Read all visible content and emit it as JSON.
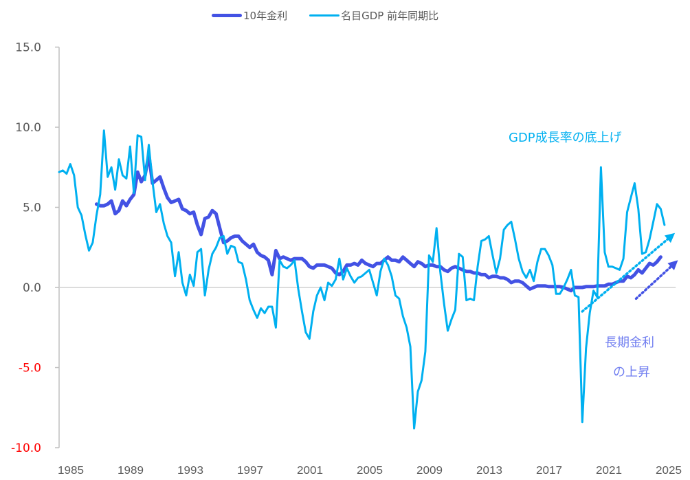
{
  "chart_data": {
    "type": "line",
    "title": "",
    "xlabel": "",
    "ylabel": "",
    "ylim": [
      -10,
      15
    ],
    "yticks": [
      15,
      10,
      5,
      0,
      -5,
      -10
    ],
    "ytick_labels": [
      "15.0",
      "10.0",
      "5.0",
      "0.0",
      "-5.0",
      "-10.0"
    ],
    "negative_tick_color": "#ff0000",
    "xlim": [
      1985,
      2026.25
    ],
    "xticks": [
      1985,
      1989,
      1993,
      1997,
      2001,
      2005,
      2009,
      2013,
      2017,
      2021,
      2025
    ],
    "xtick_labels": [
      "1985",
      "1989",
      "1993",
      "1997",
      "2001",
      "2005",
      "2009",
      "2013",
      "2017",
      "2021",
      "2025"
    ],
    "legend_position": "top-center",
    "series": [
      {
        "name": "10年金利",
        "color": "#4352e4",
        "start": 1987.5,
        "step": 0.25,
        "values": [
          5.2,
          5.1,
          5.1,
          5.2,
          5.4,
          4.6,
          4.8,
          5.4,
          5.1,
          5.5,
          5.8,
          7.2,
          6.6,
          7.0,
          8.3,
          6.5,
          6.7,
          6.9,
          6.2,
          5.6,
          5.3,
          5.4,
          5.5,
          4.9,
          4.8,
          4.6,
          4.7,
          3.9,
          3.3,
          4.3,
          4.4,
          4.8,
          4.6,
          3.7,
          2.8,
          2.9,
          3.1,
          3.2,
          3.2,
          2.9,
          2.7,
          2.5,
          2.7,
          2.2,
          2.0,
          1.9,
          1.7,
          0.8,
          2.3,
          1.8,
          1.9,
          1.8,
          1.7,
          1.8,
          1.8,
          1.8,
          1.6,
          1.3,
          1.2,
          1.4,
          1.4,
          1.4,
          1.3,
          1.2,
          0.9,
          0.8,
          1.0,
          1.4,
          1.4,
          1.5,
          1.4,
          1.7,
          1.5,
          1.4,
          1.3,
          1.5,
          1.5,
          1.7,
          1.9,
          1.7,
          1.7,
          1.6,
          1.9,
          1.7,
          1.5,
          1.3,
          1.6,
          1.5,
          1.3,
          1.4,
          1.4,
          1.3,
          1.3,
          1.1,
          1.0,
          1.2,
          1.3,
          1.2,
          1.1,
          1.0,
          1.0,
          0.9,
          0.9,
          0.8,
          0.8,
          0.6,
          0.7,
          0.7,
          0.6,
          0.6,
          0.5,
          0.3,
          0.4,
          0.4,
          0.3,
          0.1,
          -0.1,
          0.0,
          0.1,
          0.1,
          0.1,
          0.05,
          0.05,
          0.05,
          0.05,
          0.0,
          -0.1,
          -0.2,
          0.0,
          0.0,
          0.0,
          0.05,
          0.05,
          0.05,
          0.1,
          0.1,
          0.1,
          0.2,
          0.2,
          0.3,
          0.4,
          0.4,
          0.7,
          0.6,
          0.8,
          1.1,
          0.9,
          1.2,
          1.5,
          1.4,
          1.6,
          1.9
        ]
      },
      {
        "name": "名目GDP 前年同期比",
        "color": "#00b0f0",
        "start": 1985,
        "step": 0.25,
        "values": [
          7.2,
          7.3,
          7.1,
          7.7,
          7.0,
          5.0,
          4.5,
          3.3,
          2.3,
          2.8,
          4.5,
          5.8,
          9.8,
          6.9,
          7.5,
          6.1,
          8.0,
          7.0,
          6.8,
          8.8,
          5.9,
          9.5,
          9.4,
          6.7,
          8.9,
          6.6,
          4.7,
          5.2,
          4.0,
          3.2,
          2.8,
          0.7,
          2.2,
          0.3,
          -0.5,
          0.8,
          0.1,
          2.2,
          2.4,
          -0.5,
          1.1,
          2.1,
          2.5,
          3.1,
          3.2,
          2.1,
          2.6,
          2.5,
          1.6,
          1.5,
          0.5,
          -0.8,
          -1.4,
          -1.9,
          -1.3,
          -1.6,
          -1.2,
          -1.2,
          -2.5,
          1.7,
          1.3,
          1.2,
          1.4,
          1.7,
          -0.1,
          -1.5,
          -2.8,
          -3.2,
          -1.5,
          -0.5,
          0.0,
          -0.8,
          0.3,
          0.1,
          0.5,
          1.8,
          0.5,
          1.2,
          0.7,
          0.3,
          0.6,
          0.7,
          0.9,
          1.1,
          0.3,
          -0.5,
          1.0,
          1.8,
          1.4,
          0.7,
          -0.5,
          -0.7,
          -1.8,
          -2.5,
          -3.7,
          -8.8,
          -6.5,
          -5.8,
          -4.0,
          2.0,
          1.6,
          3.7,
          1.0,
          -1.0,
          -2.7,
          -2.0,
          -1.4,
          2.1,
          1.9,
          -0.8,
          -0.7,
          -0.8,
          1.3,
          2.9,
          3.0,
          3.2,
          2.0,
          0.9,
          1.8,
          3.6,
          3.9,
          4.1,
          3.0,
          1.8,
          1.0,
          0.6,
          1.1,
          0.4,
          1.6,
          2.4,
          2.4,
          2.0,
          1.4,
          -0.4,
          -0.4,
          0.0,
          0.5,
          1.1,
          -0.5,
          -0.6,
          -8.4,
          -3.8,
          -1.6,
          -0.2,
          -0.6,
          7.5,
          2.2,
          1.3,
          1.3,
          1.2,
          1.1,
          1.8,
          4.7,
          5.6,
          6.5,
          4.9,
          2.1,
          2.2,
          3.0,
          4.1,
          5.2,
          4.9,
          3.9
        ]
      }
    ],
    "annotations": [
      {
        "text": "GDP成長率の底上げ",
        "color": "#00b0f0",
        "arrow_from": [
          2020,
          -1.5
        ],
        "arrow_to": [
          2026.2,
          3.4
        ]
      },
      {
        "text_lines": [
          "長期金利",
          "の上昇"
        ],
        "color": "#4352e4",
        "text_color": "#6f7df0",
        "arrow_from": [
          2023.6,
          -0.7
        ],
        "arrow_to": [
          2026.4,
          1.7
        ]
      }
    ]
  }
}
